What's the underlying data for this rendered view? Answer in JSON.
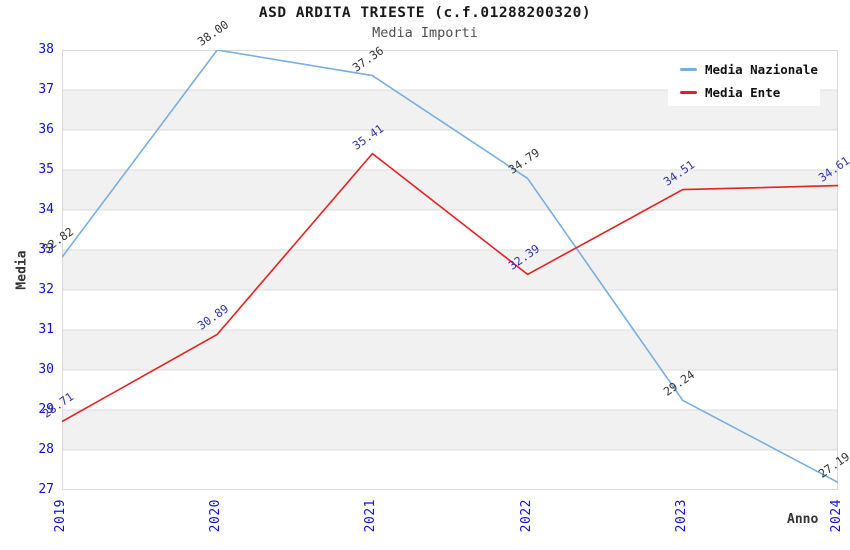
{
  "header": {
    "title": "ASD ARDITA TRIESTE (c.f.01288200320)",
    "subtitle": "Media Importi"
  },
  "chart_data": {
    "type": "line",
    "categories": [
      "2019",
      "2020",
      "2021",
      "2022",
      "2023",
      "2024"
    ],
    "series": [
      {
        "name": "Media Nazionale",
        "color": "#79AEDE",
        "label_color": "#333333",
        "values": [
          32.82,
          38.0,
          37.36,
          34.79,
          29.24,
          27.19
        ]
      },
      {
        "name": "Media Ente",
        "color": "#E32222",
        "label_color": "#3232AA",
        "values": [
          28.71,
          30.89,
          35.41,
          32.39,
          34.51,
          34.61
        ]
      }
    ],
    "xlabel": "Anno",
    "ylabel": "Media",
    "ylim": [
      27,
      38
    ],
    "yticks": [
      38,
      37,
      36,
      35,
      34,
      33,
      32,
      31,
      30,
      29,
      28,
      27
    ],
    "value_decimals": 2,
    "grid": true,
    "legend_position": "top-right",
    "colors": {
      "tick_label": "#1212CC",
      "band": "#F1F1F1",
      "gridline": "#DDDDDD",
      "plot_border": "#D9D9D9",
      "background": "#FFFFFF"
    }
  }
}
